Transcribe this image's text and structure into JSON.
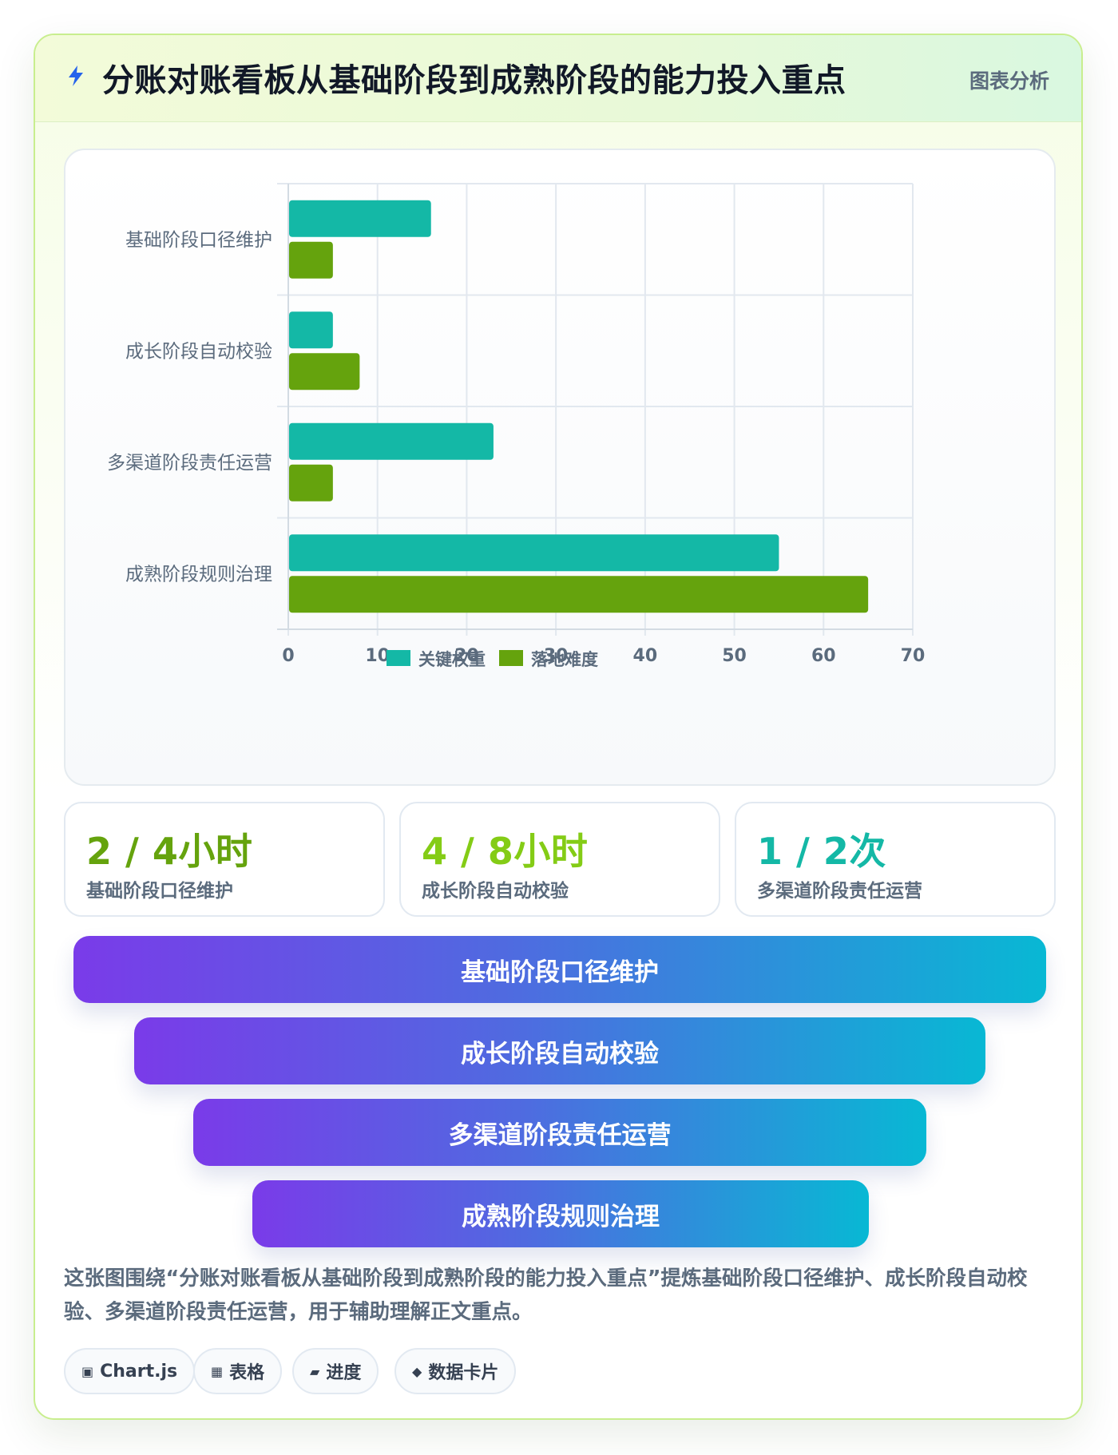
{
  "header": {
    "title": "分账对账看板从基础阶段到成熟阶段的能力投入重点",
    "tag": "图表分析",
    "icon": "lightning-bolt-icon"
  },
  "chart_data": {
    "type": "bar",
    "orientation": "horizontal",
    "categories": [
      "基础阶段口径维护",
      "成长阶段自动校验",
      "多渠道阶段责任运营",
      "成熟阶段规则治理"
    ],
    "series": [
      {
        "name": "关键权重",
        "color": "#14b8a6",
        "values": [
          16,
          5,
          23,
          55
        ]
      },
      {
        "name": "落地难度",
        "color": "#65a30d",
        "values": [
          5,
          8,
          5,
          65
        ]
      }
    ],
    "xlim": [
      0,
      70
    ],
    "xticks": [
      "0",
      "10",
      "20",
      "30",
      "40",
      "50",
      "60",
      "70"
    ],
    "grid": true,
    "legend_position": "bottom"
  },
  "stats": [
    {
      "value": "2 / 4小时",
      "label": "基础阶段口径维护",
      "color": "#65a30d"
    },
    {
      "value": "4 / 8小时",
      "label": "成长阶段自动校验",
      "color": "#84cc16"
    },
    {
      "value": "1 / 2次",
      "label": "多渠道阶段责任运营",
      "color": "#14b8a6"
    }
  ],
  "funnel": [
    "基础阶段口径维护",
    "成长阶段自动校验",
    "多渠道阶段责任运营",
    "成熟阶段规则治理"
  ],
  "description": "这张图围绕“分账对账看板从基础阶段到成熟阶段的能力投入重点”提炼基础阶段口径维护、成长阶段自动校验、多渠道阶段责任运营，用于辅助理解正文重点。",
  "chips": [
    {
      "icon": "▣",
      "icon_name": "chart-icon",
      "label": "Chart.js"
    },
    {
      "icon": "▦",
      "icon_name": "table-icon",
      "label": "表格"
    },
    {
      "icon": "▰",
      "icon_name": "progress-icon",
      "label": "进度"
    },
    {
      "icon": "◆",
      "icon_name": "data-card-icon",
      "label": "数据卡片"
    }
  ]
}
